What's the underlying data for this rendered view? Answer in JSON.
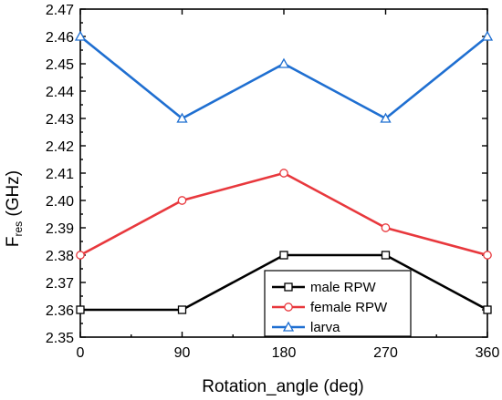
{
  "chart_data": {
    "type": "line",
    "xlabel": "Rotation_angle (deg)",
    "ylabel": {
      "main": "F",
      "sub": "res",
      "unit": " (GHz)"
    },
    "x": [
      0,
      90,
      180,
      270,
      360
    ],
    "xticks": [
      "0",
      "90",
      "180",
      "270",
      "360"
    ],
    "xlim": [
      0,
      360
    ],
    "ylim": [
      2.35,
      2.47
    ],
    "yticks": [
      "2.35",
      "2.36",
      "2.37",
      "2.38",
      "2.39",
      "2.40",
      "2.41",
      "2.42",
      "2.43",
      "2.44",
      "2.45",
      "2.46",
      "2.47"
    ],
    "grid": false,
    "legend_position": "bottom-center",
    "series": [
      {
        "name": "male RPW",
        "values": [
          2.36,
          2.36,
          2.38,
          2.38,
          2.36
        ],
        "color": "#000000",
        "marker": "square"
      },
      {
        "name": "female RPW",
        "values": [
          2.38,
          2.4,
          2.41,
          2.39,
          2.38
        ],
        "color": "#e8383d",
        "marker": "circle"
      },
      {
        "name": "larva",
        "values": [
          2.46,
          2.43,
          2.45,
          2.43,
          2.46
        ],
        "color": "#1f6fd1",
        "marker": "triangle"
      }
    ]
  }
}
